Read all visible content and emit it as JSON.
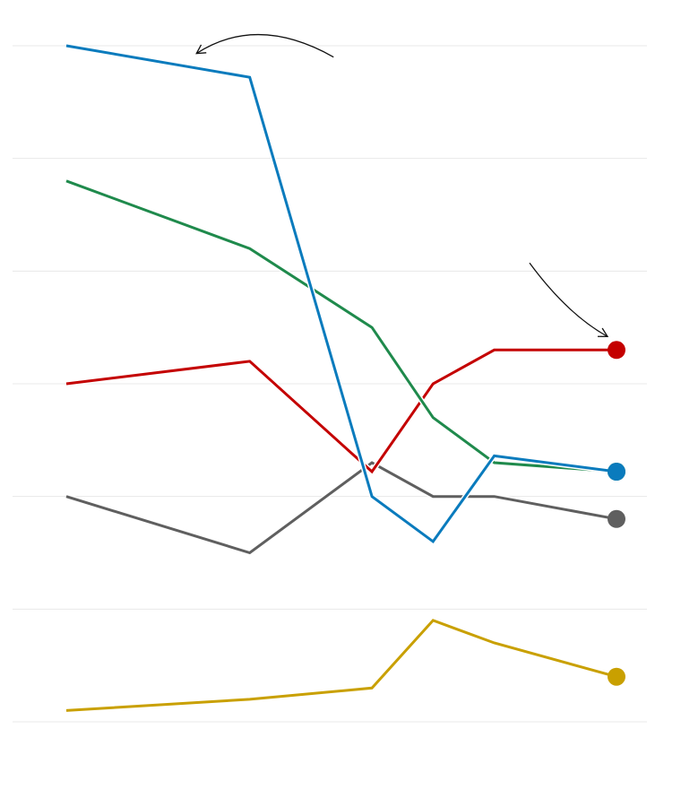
{
  "chart_data": {
    "type": "line",
    "title": "",
    "xlabel": "",
    "ylabel": "",
    "x": [
      2009,
      2012,
      2014,
      2015,
      2016,
      2018
    ],
    "xlim": [
      2009,
      2018
    ],
    "ylim": [
      0,
      30
    ],
    "y_gridlines": [
      0,
      5,
      10,
      15,
      20,
      25,
      30
    ],
    "grid": true,
    "legend": "none",
    "end_markers": true,
    "series": [
      {
        "key": "blue",
        "color": "#0a7bbd",
        "values": [
          30,
          28.6,
          10,
          8,
          11.8,
          11.1
        ]
      },
      {
        "key": "green",
        "color": "#1f8a4c",
        "values": [
          24,
          21,
          17.5,
          13.5,
          11.5,
          11.1
        ]
      },
      {
        "key": "red",
        "color": "#c40000",
        "values": [
          15,
          16,
          11.1,
          15,
          16.5,
          16.5
        ]
      },
      {
        "key": "gray",
        "color": "#5f5f5f",
        "values": [
          10,
          7.5,
          11.5,
          10,
          10,
          9
        ]
      },
      {
        "key": "yellow",
        "color": "#c9a000",
        "values": [
          0.5,
          1,
          1.5,
          4.5,
          3.5,
          2
        ]
      }
    ],
    "annotations": [
      {
        "type": "arrow",
        "target_series": "blue",
        "target_x": 2011.1
      },
      {
        "type": "arrow",
        "target_series": "red",
        "target_x": 2018
      }
    ]
  }
}
